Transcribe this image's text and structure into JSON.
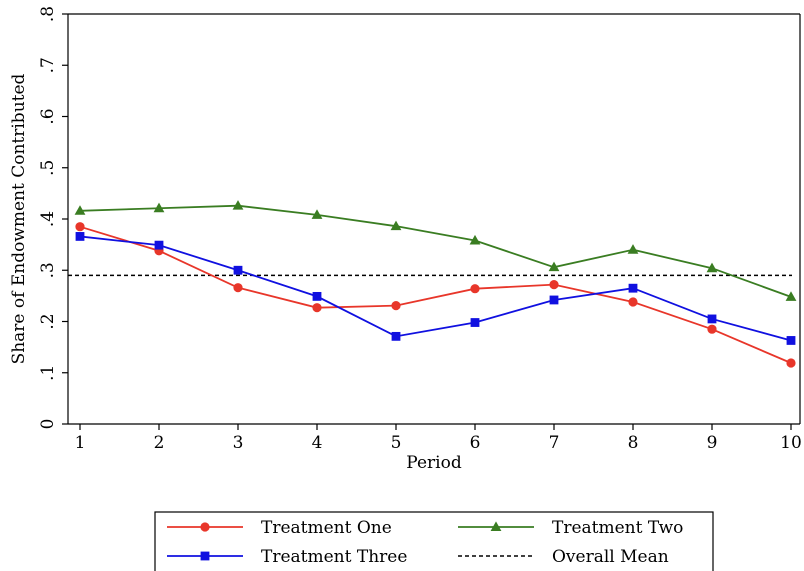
{
  "chart_data": {
    "type": "line",
    "xlabel": "Period",
    "ylabel": "Share of Endowment Contributed",
    "x": [
      1,
      2,
      3,
      4,
      5,
      6,
      7,
      8,
      9,
      10
    ],
    "xlim": [
      1,
      10
    ],
    "ylim": [
      0,
      0.8
    ],
    "y_ticks": [
      0,
      0.1,
      0.2,
      0.3,
      0.4,
      0.5,
      0.6,
      0.7,
      0.8
    ],
    "y_tick_labels": [
      "0",
      ".1",
      ".2",
      ".3",
      ".4",
      ".5",
      ".6",
      ".7",
      ".8"
    ],
    "x_tick_labels": [
      "1",
      "2",
      "3",
      "4",
      "5",
      "6",
      "7",
      "8",
      "9",
      "10"
    ],
    "grid": false,
    "legend_position": "bottom",
    "series": [
      {
        "name": "Treatment One",
        "color": "#e8362a",
        "marker": "circle",
        "values": [
          0.385,
          0.338,
          0.266,
          0.227,
          0.231,
          0.264,
          0.272,
          0.238,
          0.185,
          0.119
        ]
      },
      {
        "name": "Treatment Two",
        "color": "#3a7d22",
        "marker": "triangle",
        "values": [
          0.416,
          0.421,
          0.426,
          0.408,
          0.386,
          0.358,
          0.306,
          0.34,
          0.304,
          0.248
        ]
      },
      {
        "name": "Treatment Three",
        "color": "#1010e0",
        "marker": "square",
        "values": [
          0.366,
          0.349,
          0.3,
          0.249,
          0.171,
          0.198,
          0.242,
          0.265,
          0.205,
          0.163
        ]
      }
    ],
    "reference_line": {
      "name": "Overall Mean",
      "value": 0.29,
      "color": "#000000",
      "style": "dashed"
    }
  }
}
